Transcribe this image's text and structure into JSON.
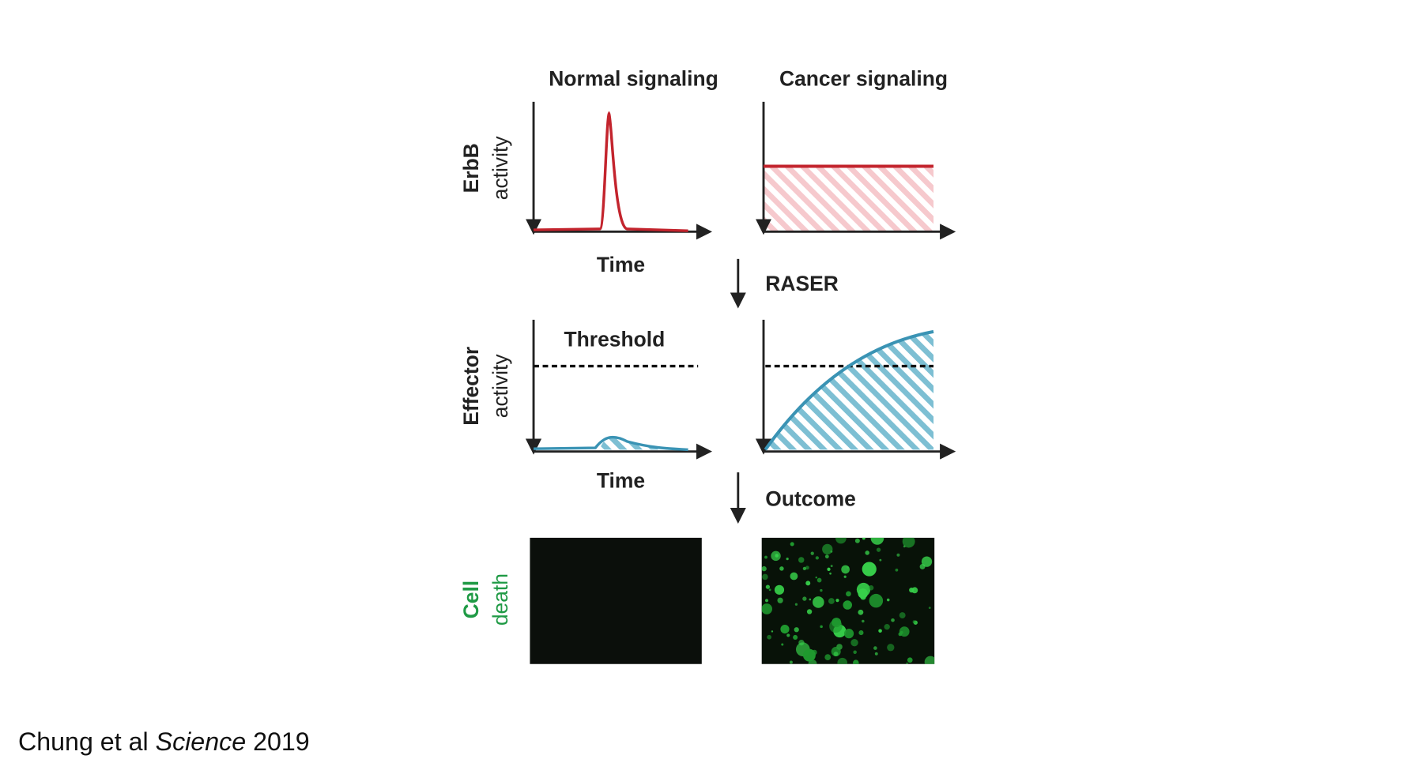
{
  "columns": [
    "Normal signaling",
    "Cancer signaling"
  ],
  "row_labels": {
    "erbb": [
      "ErbB",
      "activity"
    ],
    "effector": [
      "Effector",
      "activity"
    ],
    "death": [
      "Cell",
      "death"
    ]
  },
  "x_labels": [
    "Time",
    "Time"
  ],
  "steps": [
    "RASER",
    "Outcome"
  ],
  "threshold": "Threshold",
  "citation": {
    "authors": "Chung et al",
    "journal": "Science",
    "year": "2019"
  }
}
